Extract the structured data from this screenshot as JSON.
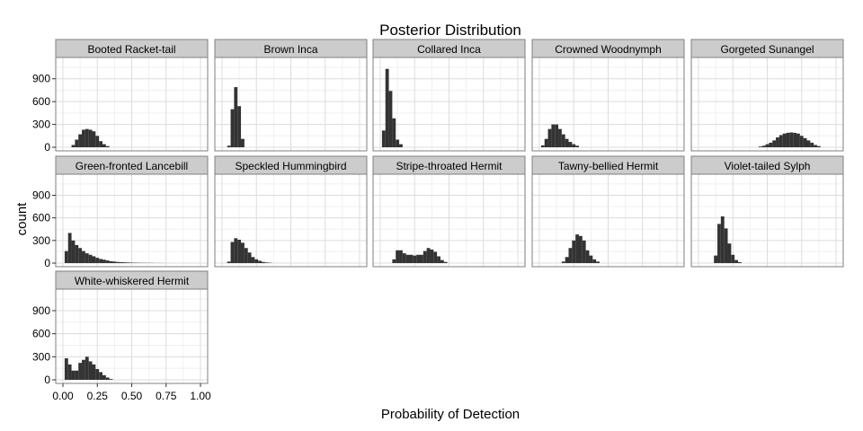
{
  "chart_data": {
    "type": "bar",
    "subtype": "faceted-histogram",
    "title": "Posterior Distribution",
    "xlabel": "Probability of Detection",
    "ylabel": "count",
    "xlim": [
      0,
      1
    ],
    "ylim": [
      0,
      1180
    ],
    "x_ticks": [
      0,
      0.25,
      0.5,
      0.75,
      1
    ],
    "x_tick_labels": [
      "0.00",
      "0.25",
      "0.50",
      "0.75",
      "1.00"
    ],
    "y_ticks": [
      0,
      300,
      600,
      900
    ],
    "y_tick_labels": [
      "0",
      "300",
      "600",
      "900"
    ],
    "bin_width": 0.025,
    "grid": true,
    "bar_color": "#333333",
    "strip_color": "#cccccc",
    "panels": [
      {
        "name": "Booted Racket-tail",
        "bins": [
          [
            0.075,
            30
          ],
          [
            0.1,
            100
          ],
          [
            0.125,
            170
          ],
          [
            0.15,
            230
          ],
          [
            0.175,
            240
          ],
          [
            0.2,
            230
          ],
          [
            0.225,
            210
          ],
          [
            0.25,
            150
          ],
          [
            0.275,
            80
          ],
          [
            0.3,
            40
          ],
          [
            0.325,
            15
          ]
        ]
      },
      {
        "name": "Brown Inca",
        "bins": [
          [
            0.05,
            20
          ],
          [
            0.075,
            500
          ],
          [
            0.1,
            790
          ],
          [
            0.125,
            540
          ],
          [
            0.15,
            110
          ]
        ]
      },
      {
        "name": "Collared Inca",
        "bins": [
          [
            0.025,
            220
          ],
          [
            0.05,
            1030
          ],
          [
            0.075,
            740
          ],
          [
            0.1,
            380
          ],
          [
            0.125,
            100
          ],
          [
            0.15,
            40
          ]
        ]
      },
      {
        "name": "Crowned Woodnymph",
        "bins": [
          [
            0.025,
            25
          ],
          [
            0.05,
            110
          ],
          [
            0.075,
            240
          ],
          [
            0.1,
            300
          ],
          [
            0.125,
            300
          ],
          [
            0.15,
            240
          ],
          [
            0.175,
            170
          ],
          [
            0.2,
            110
          ],
          [
            0.225,
            70
          ],
          [
            0.25,
            40
          ],
          [
            0.275,
            20
          ]
        ]
      },
      {
        "name": "Gorgeted Sunangel",
        "bins": [
          [
            0.45,
            10
          ],
          [
            0.475,
            20
          ],
          [
            0.5,
            40
          ],
          [
            0.525,
            60
          ],
          [
            0.55,
            90
          ],
          [
            0.575,
            130
          ],
          [
            0.6,
            160
          ],
          [
            0.625,
            180
          ],
          [
            0.65,
            190
          ],
          [
            0.675,
            195
          ],
          [
            0.7,
            190
          ],
          [
            0.725,
            180
          ],
          [
            0.75,
            150
          ],
          [
            0.775,
            120
          ],
          [
            0.8,
            90
          ],
          [
            0.825,
            60
          ],
          [
            0.85,
            30
          ],
          [
            0.875,
            15
          ]
        ]
      },
      {
        "name": "Green-fronted Lancebill",
        "bins": [
          [
            0.025,
            160
          ],
          [
            0.05,
            400
          ],
          [
            0.075,
            300
          ],
          [
            0.1,
            240
          ],
          [
            0.125,
            200
          ],
          [
            0.15,
            160
          ],
          [
            0.175,
            130
          ],
          [
            0.2,
            110
          ],
          [
            0.225,
            90
          ],
          [
            0.25,
            70
          ],
          [
            0.275,
            55
          ],
          [
            0.3,
            45
          ],
          [
            0.325,
            35
          ],
          [
            0.35,
            25
          ],
          [
            0.375,
            20
          ],
          [
            0.4,
            15
          ],
          [
            0.425,
            12
          ],
          [
            0.45,
            10
          ],
          [
            0.475,
            8
          ],
          [
            0.5,
            6
          ],
          [
            0.525,
            5
          ],
          [
            0.55,
            4
          ],
          [
            0.575,
            3
          ],
          [
            0.6,
            3
          ],
          [
            0.625,
            2
          ],
          [
            0.65,
            2
          ],
          [
            0.675,
            1
          ],
          [
            0.7,
            1
          ],
          [
            0.725,
            1
          ]
        ]
      },
      {
        "name": "Speckled Hummingbird",
        "bins": [
          [
            0.05,
            20
          ],
          [
            0.075,
            280
          ],
          [
            0.1,
            330
          ],
          [
            0.125,
            310
          ],
          [
            0.15,
            270
          ],
          [
            0.175,
            200
          ],
          [
            0.2,
            140
          ],
          [
            0.225,
            80
          ],
          [
            0.25,
            50
          ],
          [
            0.275,
            30
          ],
          [
            0.3,
            15
          ],
          [
            0.325,
            8
          ],
          [
            0.35,
            4
          ]
        ]
      },
      {
        "name": "Stripe-throated Hermit",
        "bins": [
          [
            0.1,
            50
          ],
          [
            0.125,
            170
          ],
          [
            0.15,
            170
          ],
          [
            0.175,
            130
          ],
          [
            0.2,
            110
          ],
          [
            0.225,
            110
          ],
          [
            0.25,
            100
          ],
          [
            0.275,
            110
          ],
          [
            0.3,
            110
          ],
          [
            0.325,
            160
          ],
          [
            0.35,
            200
          ],
          [
            0.375,
            180
          ],
          [
            0.4,
            150
          ],
          [
            0.425,
            90
          ],
          [
            0.45,
            40
          ],
          [
            0.475,
            15
          ]
        ]
      },
      {
        "name": "Tawny-bellied Hermit",
        "bins": [
          [
            0.175,
            20
          ],
          [
            0.2,
            80
          ],
          [
            0.225,
            200
          ],
          [
            0.25,
            300
          ],
          [
            0.275,
            380
          ],
          [
            0.3,
            360
          ],
          [
            0.325,
            300
          ],
          [
            0.35,
            170
          ],
          [
            0.375,
            100
          ],
          [
            0.4,
            50
          ],
          [
            0.425,
            20
          ]
        ]
      },
      {
        "name": "Violet-tailed Sylph",
        "bins": [
          [
            0.125,
            100
          ],
          [
            0.15,
            520
          ],
          [
            0.175,
            620
          ],
          [
            0.2,
            460
          ],
          [
            0.225,
            260
          ],
          [
            0.25,
            110
          ],
          [
            0.275,
            40
          ],
          [
            0.3,
            12
          ]
        ]
      },
      {
        "name": "White-whiskered Hermit",
        "bins": [
          [
            0.025,
            280
          ],
          [
            0.05,
            200
          ],
          [
            0.075,
            120
          ],
          [
            0.1,
            120
          ],
          [
            0.125,
            220
          ],
          [
            0.15,
            260
          ],
          [
            0.175,
            300
          ],
          [
            0.2,
            240
          ],
          [
            0.225,
            200
          ],
          [
            0.25,
            140
          ],
          [
            0.275,
            100
          ],
          [
            0.3,
            60
          ],
          [
            0.325,
            30
          ],
          [
            0.35,
            10
          ]
        ]
      }
    ]
  }
}
